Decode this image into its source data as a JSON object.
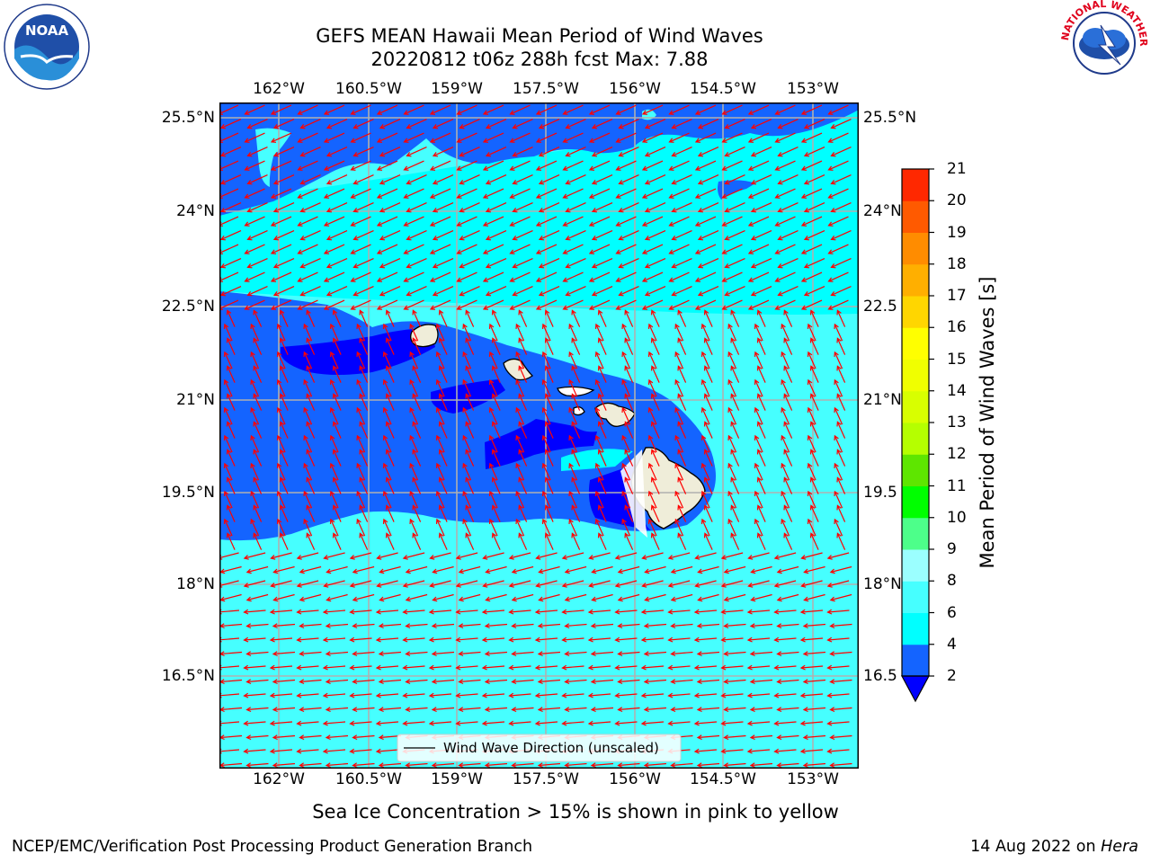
{
  "title": {
    "line1": "GEFS MEAN Hawaii Mean Period of Wind Waves",
    "line2": "20220812 t06z 288h fcst   Max: 7.88"
  },
  "map": {
    "lon_ticks": [
      "162°W",
      "160.5°W",
      "159°W",
      "157.5°W",
      "156°W",
      "154.5°W",
      "153°W"
    ],
    "lat_ticks": [
      "25.5°N",
      "24°N",
      "22.5°N",
      "21°N",
      "19.5°N",
      "18°N",
      "16.5°N"
    ],
    "lat_ticks_right": [
      "25.5°N",
      "24°N",
      "22.5",
      "21°N",
      "19.5",
      "18°N",
      "16.5"
    ],
    "legend_label": "Wind Wave Direction (unscaled)",
    "ocean_colors": {
      "period_2_4": "#1464ff",
      "period_4_6": "#00ffff",
      "period_6_8": "#46ffff",
      "period_below_2": "#0000ff"
    },
    "land_color": "#efedd9",
    "arrow_color": "#ff0000"
  },
  "colorbar": {
    "label": "Mean Period of Wind Waves [s]",
    "ticks": [
      "2",
      "4",
      "6",
      "8",
      "9",
      "10",
      "11",
      "12",
      "13",
      "14",
      "15",
      "16",
      "17",
      "18",
      "19",
      "20",
      "21"
    ],
    "colors": [
      "#1464ff",
      "#00ffff",
      "#46ffff",
      "#9bffff",
      "#4dff8a",
      "#00ff00",
      "#5ee600",
      "#b5ff00",
      "#d8ff00",
      "#f0ff00",
      "#ffff00",
      "#ffd600",
      "#ffaf00",
      "#ff8c00",
      "#ff5a00",
      "#ff2800"
    ],
    "under_color": "#0000ff"
  },
  "footnote": "Sea Ice Concentration > 15% is shown in pink to yellow",
  "credit_left": "NCEP/EMC/Verification Post Processing Product Generation Branch",
  "credit_right_date": "14 Aug 2022 on ",
  "credit_right_machine": "Hera",
  "logos": {
    "left_text": "NOAA",
    "right_text": "NATIONAL WEATHER SERVICE"
  }
}
